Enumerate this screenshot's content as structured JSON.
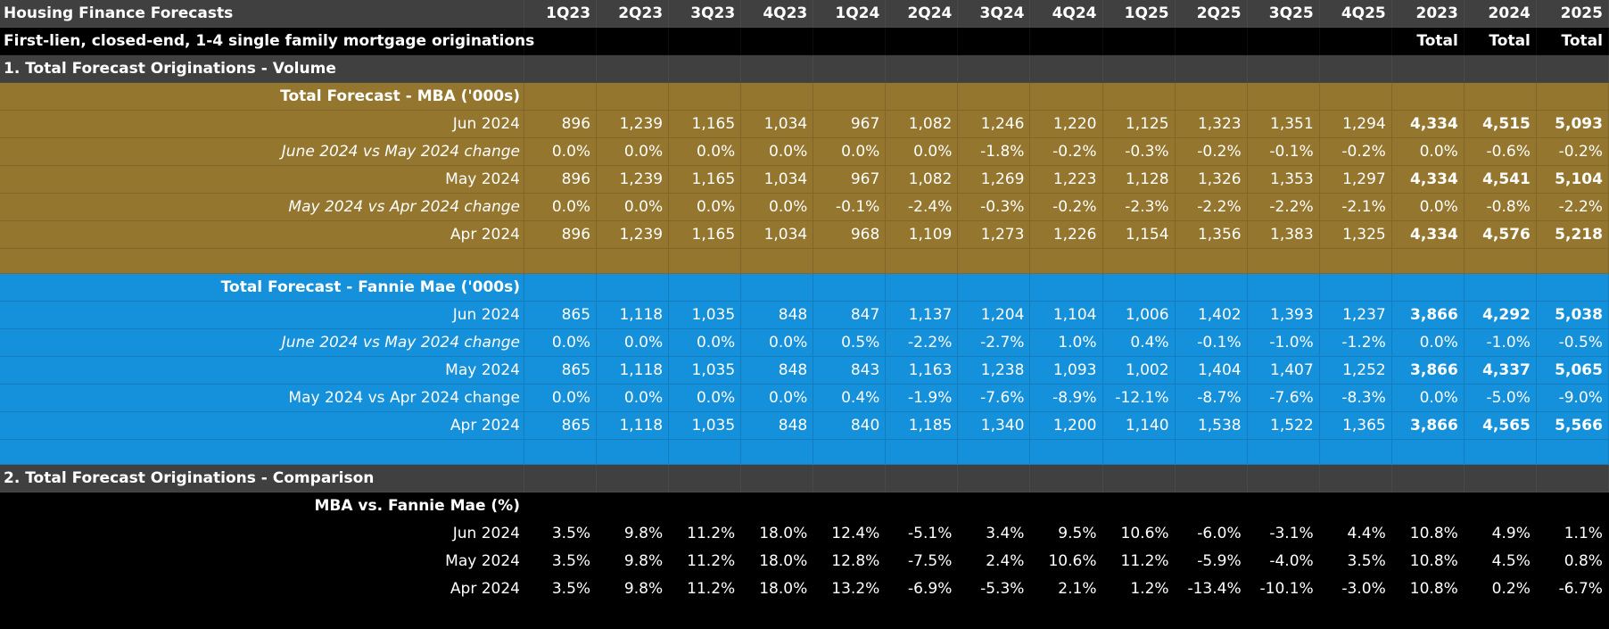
{
  "header": {
    "title": "Housing Finance Forecasts",
    "columns": [
      "1Q23",
      "2Q23",
      "3Q23",
      "4Q23",
      "1Q24",
      "2Q24",
      "3Q24",
      "4Q24",
      "1Q25",
      "2Q25",
      "3Q25",
      "4Q25",
      "2023",
      "2024",
      "2025"
    ],
    "subtitle": "First-lien, closed-end, 1-4 single family mortgage originations",
    "totals": [
      "Total",
      "Total",
      "Total"
    ]
  },
  "sections": [
    {
      "title": "1. Total Forecast Originations - Volume",
      "groups": [
        {
          "title": "Total Forecast - MBA ('000s)",
          "rows": [
            {
              "label": "Jun 2024",
              "values": [
                "896",
                "1,239",
                "1,165",
                "1,034",
                "967",
                "1,082",
                "1,246",
                "1,220",
                "1,125",
                "1,323",
                "1,351",
                "1,294",
                "4,334",
                "4,515",
                "5,093"
              ]
            },
            {
              "label": "June 2024 vs May 2024 change",
              "values": [
                "0.0%",
                "0.0%",
                "0.0%",
                "0.0%",
                "0.0%",
                "0.0%",
                "-1.8%",
                "-0.2%",
                "-0.3%",
                "-0.2%",
                "-0.1%",
                "-0.2%",
                "0.0%",
                "-0.6%",
                "-0.2%"
              ]
            },
            {
              "label": "May 2024",
              "values": [
                "896",
                "1,239",
                "1,165",
                "1,034",
                "967",
                "1,082",
                "1,269",
                "1,223",
                "1,128",
                "1,326",
                "1,353",
                "1,297",
                "4,334",
                "4,541",
                "5,104"
              ]
            },
            {
              "label": "May 2024 vs Apr 2024 change",
              "values": [
                "0.0%",
                "0.0%",
                "0.0%",
                "0.0%",
                "-0.1%",
                "-2.4%",
                "-0.3%",
                "-0.2%",
                "-2.3%",
                "-2.2%",
                "-2.2%",
                "-2.1%",
                "0.0%",
                "-0.8%",
                "-2.2%"
              ]
            },
            {
              "label": "Apr 2024",
              "values": [
                "896",
                "1,239",
                "1,165",
                "1,034",
                "968",
                "1,109",
                "1,273",
                "1,226",
                "1,154",
                "1,356",
                "1,383",
                "1,325",
                "4,334",
                "4,576",
                "5,218"
              ]
            }
          ]
        },
        {
          "title": "Total Forecast - Fannie Mae ('000s)",
          "rows": [
            {
              "label": "Jun 2024",
              "values": [
                "865",
                "1,118",
                "1,035",
                "848",
                "847",
                "1,137",
                "1,204",
                "1,104",
                "1,006",
                "1,402",
                "1,393",
                "1,237",
                "3,866",
                "4,292",
                "5,038"
              ]
            },
            {
              "label": "June 2024 vs May 2024 change",
              "values": [
                "0.0%",
                "0.0%",
                "0.0%",
                "0.0%",
                "0.5%",
                "-2.2%",
                "-2.7%",
                "1.0%",
                "0.4%",
                "-0.1%",
                "-1.0%",
                "-1.2%",
                "0.0%",
                "-1.0%",
                "-0.5%"
              ]
            },
            {
              "label": "May 2024",
              "values": [
                "865",
                "1,118",
                "1,035",
                "848",
                "843",
                "1,163",
                "1,238",
                "1,093",
                "1,002",
                "1,404",
                "1,407",
                "1,252",
                "3,866",
                "4,337",
                "5,065"
              ]
            },
            {
              "label": "May 2024 vs Apr 2024 change",
              "values": [
                "0.0%",
                "0.0%",
                "0.0%",
                "0.0%",
                "0.4%",
                "-1.9%",
                "-7.6%",
                "-8.9%",
                "-12.1%",
                "-8.7%",
                "-7.6%",
                "-8.3%",
                "0.0%",
                "-5.0%",
                "-9.0%"
              ]
            },
            {
              "label": "Apr 2024",
              "values": [
                "865",
                "1,118",
                "1,035",
                "848",
                "840",
                "1,185",
                "1,340",
                "1,200",
                "1,140",
                "1,538",
                "1,522",
                "1,365",
                "3,866",
                "4,565",
                "5,566"
              ]
            }
          ]
        }
      ]
    },
    {
      "title": "2. Total Forecast Originations - Comparison",
      "groups": [
        {
          "title": "MBA vs. Fannie Mae (%)",
          "rows": [
            {
              "label": "Jun 2024",
              "values": [
                "3.5%",
                "9.8%",
                "11.2%",
                "18.0%",
                "12.4%",
                "-5.1%",
                "3.4%",
                "9.5%",
                "10.6%",
                "-6.0%",
                "-3.1%",
                "4.4%",
                "10.8%",
                "4.9%",
                "1.1%"
              ]
            },
            {
              "label": "May 2024",
              "values": [
                "3.5%",
                "9.8%",
                "11.2%",
                "18.0%",
                "12.8%",
                "-7.5%",
                "2.4%",
                "10.6%",
                "11.2%",
                "-5.9%",
                "-4.0%",
                "3.5%",
                "10.8%",
                "4.5%",
                "0.8%"
              ]
            },
            {
              "label": "Apr 2024",
              "values": [
                "3.5%",
                "9.8%",
                "11.2%",
                "18.0%",
                "13.2%",
                "-6.9%",
                "-5.3%",
                "2.1%",
                "1.2%",
                "-13.4%",
                "-10.1%",
                "-3.0%",
                "10.8%",
                "0.2%",
                "-6.7%"
              ]
            }
          ]
        }
      ]
    }
  ]
}
